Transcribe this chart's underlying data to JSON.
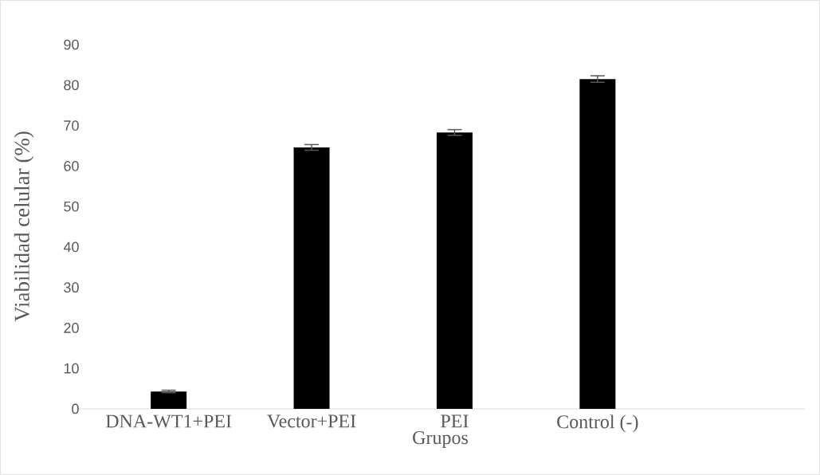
{
  "chart_data": {
    "type": "bar",
    "xlabel": "Grupos",
    "ylabel": "Viabilidad celular (%)",
    "categories": [
      "DNA-WT1+PEI",
      "Vector+PEI",
      "PEI",
      "Control (-)",
      null
    ],
    "values": [
      4.3,
      64.6,
      68.3,
      81.5,
      null
    ],
    "errors": [
      0.3,
      0.7,
      0.7,
      0.8,
      null
    ],
    "color": "#000000",
    "ylim": [
      0,
      90
    ],
    "yticks": [
      0,
      10,
      20,
      30,
      40,
      50,
      60,
      70,
      80,
      90
    ]
  }
}
